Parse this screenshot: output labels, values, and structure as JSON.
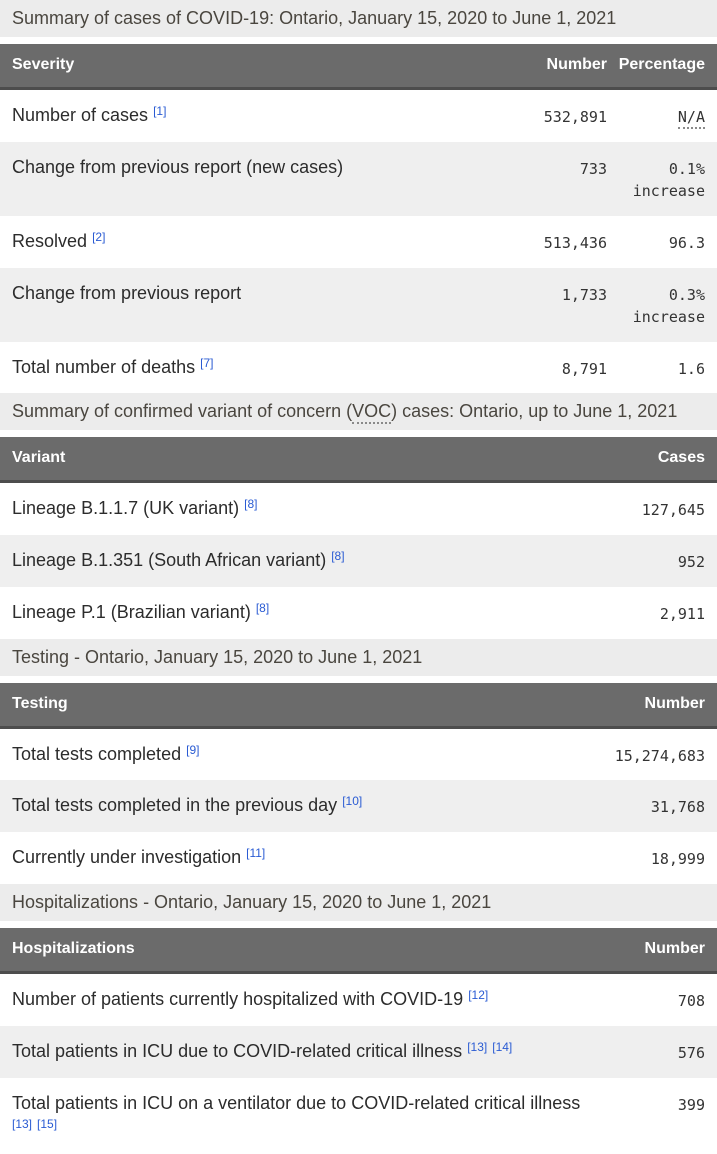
{
  "colors": {
    "caption_bg": "#ececec",
    "caption_text": "#4a463f",
    "header_bg": "#6b6b6b",
    "header_border": "#4d4d4d",
    "header_text": "#ffffff",
    "stripe_bg": "#efefef",
    "row_bg": "#ffffff",
    "label_text": "#2c2c2c",
    "value_text": "#333333",
    "link": "#2a5bd3",
    "abbr_dot": "#8a8a8a"
  },
  "sections": [
    {
      "caption": "Summary of cases of COVID-19: Ontario, January 15, 2020 to June 1, 2021",
      "columns": {
        "label": "Severity",
        "number": "Number",
        "percentage": "Percentage"
      },
      "rows": [
        {
          "label": "Number of cases",
          "footnotes": [
            "[1]"
          ],
          "number": "532,891",
          "percentage": "N/A"
        },
        {
          "label": "Change from previous report (new cases)",
          "footnotes": [],
          "number": "733",
          "percentage": "0.1% increase"
        },
        {
          "label": "Resolved",
          "footnotes": [
            "[2]"
          ],
          "number": "513,436",
          "percentage": "96.3"
        },
        {
          "label": "Change from previous report",
          "footnotes": [],
          "number": "1,733",
          "percentage": "0.3% increase"
        },
        {
          "label": "Total number of deaths",
          "footnotes": [
            "[7]"
          ],
          "number": "8,791",
          "percentage": "1.6"
        }
      ]
    },
    {
      "caption_parts": {
        "before": "Summary of confirmed variant of concern (",
        "abbr": "VOC",
        "after": ") cases: Ontario, up to June 1, 2021"
      },
      "columns": {
        "label": "Variant",
        "value": "Cases"
      },
      "rows": [
        {
          "label": "Lineage B.1.1.7 (UK variant)",
          "footnotes": [
            "[8]"
          ],
          "value": "127,645"
        },
        {
          "label": "Lineage B.1.351 (South African variant)",
          "footnotes": [
            "[8]"
          ],
          "value": "952"
        },
        {
          "label": "Lineage P.1 (Brazilian variant)",
          "footnotes": [
            "[8]"
          ],
          "value": "2,911"
        }
      ]
    },
    {
      "caption": "Testing - Ontario, January 15, 2020 to June 1, 2021",
      "columns": {
        "label": "Testing",
        "value": "Number"
      },
      "rows": [
        {
          "label": "Total tests completed",
          "footnotes": [
            "[9]"
          ],
          "value": "15,274,683"
        },
        {
          "label": "Total tests completed in the previous day",
          "footnotes": [
            "[10]"
          ],
          "value": "31,768"
        },
        {
          "label": "Currently under investigation",
          "footnotes": [
            "[11]"
          ],
          "value": "18,999"
        }
      ]
    },
    {
      "caption": "Hospitalizations - Ontario, January 15, 2020 to June 1, 2021",
      "columns": {
        "label": "Hospitalizations",
        "value": "Number"
      },
      "rows": [
        {
          "label": "Number of patients currently hospitalized with COVID-19",
          "footnotes": [
            "[12]"
          ],
          "value": "708"
        },
        {
          "label": "Total patients in ICU due to COVID-related critical illness",
          "footnotes": [
            "[13]",
            "[14]"
          ],
          "value": "576"
        },
        {
          "label": "Total patients in ICU on a ventilator due to COVID-related critical illness",
          "footnotes": [
            "[13]",
            "[15]"
          ],
          "value": "399"
        }
      ]
    }
  ]
}
